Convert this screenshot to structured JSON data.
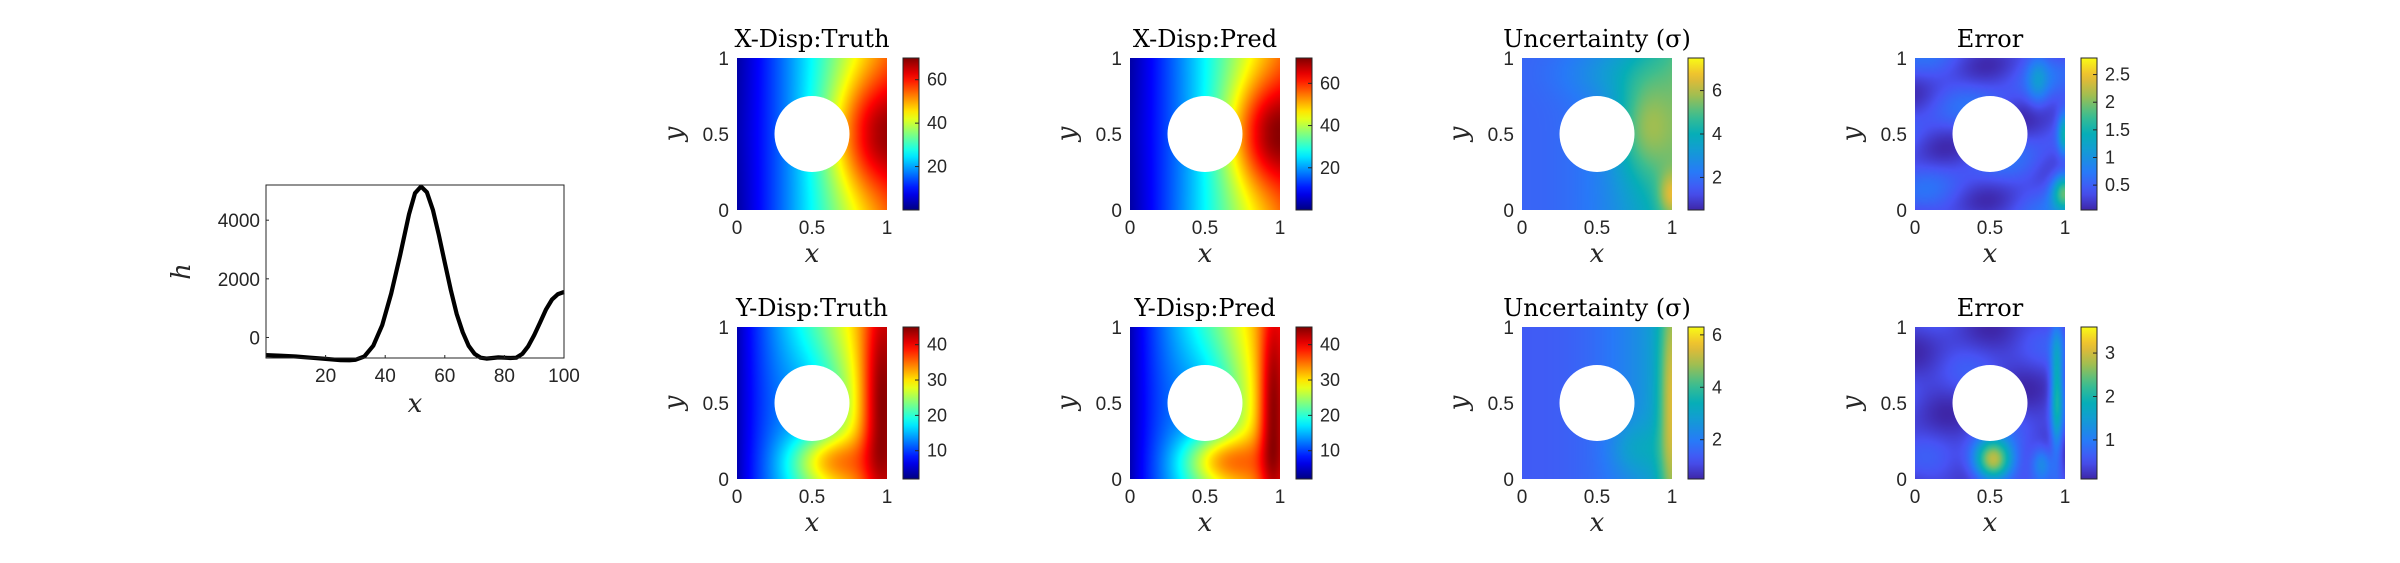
{
  "chart_data": [
    {
      "type": "line",
      "xlabel": "x",
      "ylabel": "h",
      "xlim": [
        0,
        100
      ],
      "ylim": [
        -700,
        5200
      ],
      "xticks": [
        20,
        40,
        60,
        80,
        100
      ],
      "yticks": [
        0,
        2000,
        4000
      ],
      "xtick_labels": [
        "20",
        "40",
        "60",
        "80",
        "100"
      ],
      "ytick_labels": [
        "0",
        "2000",
        "4000"
      ],
      "grid": false,
      "line_color": "#000000",
      "series": [
        {
          "x": [
            0,
            5,
            10,
            15,
            20,
            25,
            28,
            30,
            33,
            36,
            39,
            42,
            45,
            48,
            50,
            52,
            54,
            56,
            58,
            60,
            62,
            64,
            66,
            68,
            70,
            72,
            74,
            76,
            78,
            80,
            82,
            84,
            86,
            88,
            90,
            92,
            94,
            96,
            98,
            100
          ],
          "y": [
            -600,
            -620,
            -650,
            -690,
            -730,
            -770,
            -780,
            -760,
            -650,
            -280,
            420,
            1500,
            2800,
            4200,
            4920,
            5150,
            4950,
            4350,
            3500,
            2550,
            1620,
            800,
            180,
            -280,
            -560,
            -690,
            -720,
            -700,
            -680,
            -690,
            -700,
            -690,
            -560,
            -300,
            80,
            520,
            960,
            1300,
            1480,
            1550
          ]
        }
      ]
    },
    {
      "type": "heatmap",
      "title": "X-Disp:Truth",
      "xlabel": "x",
      "ylabel": "y",
      "xlim": [
        0,
        1
      ],
      "ylim": [
        0,
        1
      ],
      "xtick_labels": [
        "0",
        "0.5",
        "1"
      ],
      "ytick_labels": [
        "0",
        "0.5",
        "1"
      ],
      "colormap": "jet",
      "clim": [
        0,
        70
      ],
      "colorbar_ticks": [
        "20",
        "40",
        "60"
      ],
      "colorbar_values": [
        20,
        40,
        60
      ],
      "hole": {
        "center": [
          0.5,
          0.5
        ],
        "radius": 0.25
      }
    },
    {
      "type": "heatmap",
      "title": "X-Disp:Pred",
      "xlabel": "x",
      "ylabel": "y",
      "xlim": [
        0,
        1
      ],
      "ylim": [
        0,
        1
      ],
      "xtick_labels": [
        "0",
        "0.5",
        "1"
      ],
      "ytick_labels": [
        "0",
        "0.5",
        "1"
      ],
      "colormap": "jet",
      "clim": [
        0,
        72
      ],
      "colorbar_ticks": [
        "20",
        "40",
        "60"
      ],
      "colorbar_values": [
        20,
        40,
        60
      ],
      "hole": {
        "center": [
          0.5,
          0.5
        ],
        "radius": 0.25
      }
    },
    {
      "type": "heatmap",
      "title": "Uncertainty (σ)",
      "xlabel": "x",
      "ylabel": "y",
      "xlim": [
        0,
        1
      ],
      "ylim": [
        0,
        1
      ],
      "xtick_labels": [
        "0",
        "0.5",
        "1"
      ],
      "ytick_labels": [
        "0",
        "0.5",
        "1"
      ],
      "colormap": "parula",
      "clim": [
        0.5,
        7.5
      ],
      "colorbar_ticks": [
        "2",
        "4",
        "6"
      ],
      "colorbar_values": [
        2,
        4,
        6
      ],
      "hole": {
        "center": [
          0.5,
          0.5
        ],
        "radius": 0.25
      }
    },
    {
      "type": "heatmap",
      "title": "Error",
      "xlabel": "x",
      "ylabel": "y",
      "xlim": [
        0,
        1
      ],
      "ylim": [
        0,
        1
      ],
      "xtick_labels": [
        "0",
        "0.5",
        "1"
      ],
      "ytick_labels": [
        "0",
        "0.5",
        "1"
      ],
      "colormap": "parula",
      "clim": [
        0.05,
        2.8
      ],
      "colorbar_ticks": [
        "0.5",
        "1",
        "1.5",
        "2",
        "2.5"
      ],
      "colorbar_values": [
        0.5,
        1,
        1.5,
        2,
        2.5
      ],
      "hole": {
        "center": [
          0.5,
          0.5
        ],
        "radius": 0.25
      }
    },
    {
      "type": "heatmap",
      "title": "Y-Disp:Truth",
      "xlabel": "x",
      "ylabel": "y",
      "xlim": [
        0,
        1
      ],
      "ylim": [
        0,
        1
      ],
      "xtick_labels": [
        "0",
        "0.5",
        "1"
      ],
      "ytick_labels": [
        "0",
        "0.5",
        "1"
      ],
      "colormap": "jet",
      "clim": [
        2,
        45
      ],
      "colorbar_ticks": [
        "10",
        "20",
        "30",
        "40"
      ],
      "colorbar_values": [
        10,
        20,
        30,
        40
      ],
      "hole": {
        "center": [
          0.5,
          0.5
        ],
        "radius": 0.25
      }
    },
    {
      "type": "heatmap",
      "title": "Y-Disp:Pred",
      "xlabel": "x",
      "ylabel": "y",
      "xlim": [
        0,
        1
      ],
      "ylim": [
        0,
        1
      ],
      "xtick_labels": [
        "0",
        "0.5",
        "1"
      ],
      "ytick_labels": [
        "0",
        "0.5",
        "1"
      ],
      "colormap": "jet",
      "clim": [
        2,
        45
      ],
      "colorbar_ticks": [
        "10",
        "20",
        "30",
        "40"
      ],
      "colorbar_values": [
        10,
        20,
        30,
        40
      ],
      "hole": {
        "center": [
          0.5,
          0.5
        ],
        "radius": 0.25
      }
    },
    {
      "type": "heatmap",
      "title": "Uncertainty (σ)",
      "xlabel": "x",
      "ylabel": "y",
      "xlim": [
        0,
        1
      ],
      "ylim": [
        0,
        1
      ],
      "xtick_labels": [
        "0",
        "0.5",
        "1"
      ],
      "ytick_labels": [
        "0",
        "0.5",
        "1"
      ],
      "colormap": "parula",
      "clim": [
        0.5,
        6.3
      ],
      "colorbar_ticks": [
        "2",
        "4",
        "6"
      ],
      "colorbar_values": [
        2,
        4,
        6
      ],
      "hole": {
        "center": [
          0.5,
          0.5
        ],
        "radius": 0.25
      }
    },
    {
      "type": "heatmap",
      "title": "Error",
      "xlabel": "x",
      "ylabel": "y",
      "xlim": [
        0,
        1
      ],
      "ylim": [
        0,
        1
      ],
      "xtick_labels": [
        "0",
        "0.5",
        "1"
      ],
      "ytick_labels": [
        "0",
        "0.5",
        "1"
      ],
      "colormap": "parula",
      "clim": [
        0.1,
        3.6
      ],
      "colorbar_ticks": [
        "1",
        "2",
        "3"
      ],
      "colorbar_values": [
        1,
        2,
        3
      ],
      "hole": {
        "center": [
          0.5,
          0.5
        ],
        "radius": 0.25
      }
    }
  ]
}
